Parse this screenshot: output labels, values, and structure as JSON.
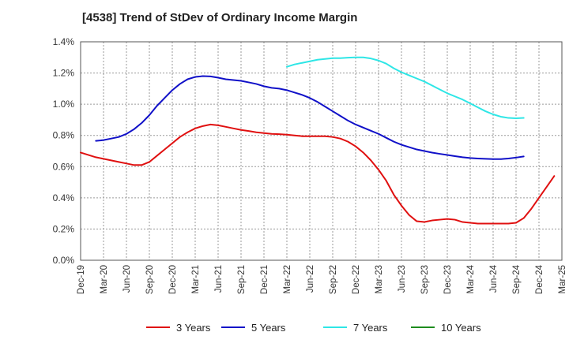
{
  "title": "[4538]  Trend of StDev of Ordinary Income Margin",
  "chart_data": {
    "type": "line",
    "title": "[4538]  Trend of StDev of Ordinary Income Margin",
    "xlabel": "",
    "ylabel": "",
    "ylim": [
      0,
      1.4
    ],
    "yticks": [
      "0.0%",
      "0.2%",
      "0.4%",
      "0.6%",
      "0.8%",
      "1.0%",
      "1.2%",
      "1.4%"
    ],
    "yvalues": [
      0,
      0.2,
      0.4,
      0.6,
      0.8,
      1.0,
      1.2,
      1.4
    ],
    "xticks": [
      "Dec-19",
      "Mar-20",
      "Jun-20",
      "Sep-20",
      "Dec-20",
      "Mar-21",
      "Jun-21",
      "Sep-21",
      "Dec-21",
      "Mar-22",
      "Jun-22",
      "Sep-22",
      "Dec-22",
      "Mar-23",
      "Jun-23",
      "Sep-23",
      "Dec-23",
      "Mar-24",
      "Jun-24",
      "Sep-24",
      "Dec-24",
      "Mar-25"
    ],
    "grid": true,
    "legend_position": "bottom",
    "series": [
      {
        "name": "3 Years",
        "color": "#e01010",
        "start_month": "Dec-19",
        "values": [
          0.69,
          0.675,
          0.66,
          0.65,
          0.64,
          0.63,
          0.62,
          0.61,
          0.61,
          0.63,
          0.67,
          0.71,
          0.75,
          0.79,
          0.82,
          0.845,
          0.86,
          0.87,
          0.865,
          0.855,
          0.845,
          0.835,
          0.828,
          0.82,
          0.815,
          0.81,
          0.808,
          0.805,
          0.8,
          0.795,
          0.795,
          0.795,
          0.795,
          0.79,
          0.78,
          0.76,
          0.73,
          0.69,
          0.64,
          0.58,
          0.51,
          0.42,
          0.35,
          0.29,
          0.25,
          0.245,
          0.255,
          0.26,
          0.265,
          0.26,
          0.245,
          0.24,
          0.235,
          0.235,
          0.235,
          0.235,
          0.235,
          0.24,
          0.27,
          0.33,
          0.4,
          0.47,
          0.54
        ]
      },
      {
        "name": "5 Years",
        "color": "#1010c8",
        "start_month": "Dec-19",
        "values": [
          null,
          null,
          0.765,
          0.77,
          0.78,
          0.79,
          0.81,
          0.84,
          0.88,
          0.93,
          0.99,
          1.04,
          1.09,
          1.13,
          1.16,
          1.175,
          1.18,
          1.178,
          1.17,
          1.16,
          1.155,
          1.15,
          1.14,
          1.13,
          1.115,
          1.105,
          1.1,
          1.09,
          1.075,
          1.06,
          1.04,
          1.015,
          0.985,
          0.955,
          0.925,
          0.895,
          0.87,
          0.85,
          0.83,
          0.81,
          0.785,
          0.76,
          0.74,
          0.725,
          0.71,
          0.7,
          0.69,
          0.682,
          0.675,
          0.667,
          0.66,
          0.655,
          0.652,
          0.65,
          0.648,
          0.648,
          0.652,
          0.658,
          0.665
        ]
      },
      {
        "name": "7 Years",
        "color": "#2ee6e6",
        "start_month": "Dec-19",
        "values": [
          null,
          null,
          null,
          null,
          null,
          null,
          null,
          null,
          null,
          null,
          null,
          null,
          null,
          null,
          null,
          null,
          null,
          null,
          null,
          null,
          null,
          null,
          null,
          null,
          null,
          null,
          null,
          1.24,
          1.255,
          1.265,
          1.275,
          1.285,
          1.29,
          1.295,
          1.295,
          1.298,
          1.3,
          1.3,
          1.293,
          1.28,
          1.26,
          1.23,
          1.205,
          1.185,
          1.165,
          1.145,
          1.12,
          1.095,
          1.07,
          1.05,
          1.03,
          1.005,
          0.98,
          0.955,
          0.935,
          0.92,
          0.912,
          0.91,
          0.912
        ]
      },
      {
        "name": "10 Years",
        "color": "#1e8c1e",
        "start_month": "Dec-19",
        "values": []
      }
    ]
  }
}
